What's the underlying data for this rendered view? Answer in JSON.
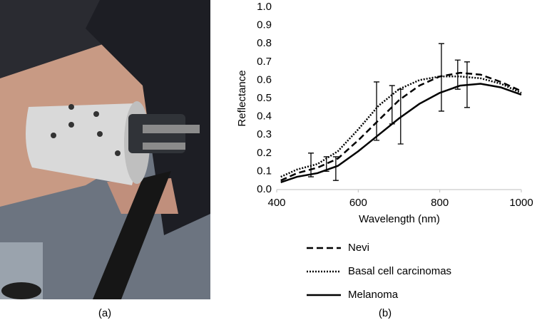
{
  "panel_labels": [
    "(a)",
    "(b)"
  ],
  "chart_data": {
    "type": "line",
    "x_label": "Wavelength (nm)",
    "y_label": "Reflectance",
    "x": [
      410,
      450,
      500,
      550,
      600,
      650,
      700,
      750,
      800,
      850,
      900,
      950,
      1000
    ],
    "series": [
      {
        "name": "Nevi",
        "color": "#000000",
        "dash": "dashed",
        "values": [
          0.05,
          0.09,
          0.12,
          0.17,
          0.27,
          0.38,
          0.49,
          0.57,
          0.62,
          0.64,
          0.63,
          0.59,
          0.54
        ]
      },
      {
        "name": "Basal cell carcinomas",
        "color": "#000000",
        "dash": "dotted",
        "values": [
          0.07,
          0.11,
          0.14,
          0.21,
          0.33,
          0.46,
          0.55,
          0.6,
          0.62,
          0.62,
          0.61,
          0.58,
          0.53
        ]
      },
      {
        "name": "Melanoma",
        "color": "#000000",
        "dash": "solid",
        "values": [
          0.04,
          0.07,
          0.09,
          0.13,
          0.21,
          0.3,
          0.39,
          0.47,
          0.53,
          0.57,
          0.58,
          0.56,
          0.52
        ]
      }
    ],
    "error_bars": [
      {
        "x": 484,
        "low": 0.07,
        "high": 0.2
      },
      {
        "x": 522,
        "low": 0.1,
        "high": 0.18
      },
      {
        "x": 545,
        "low": 0.05,
        "high": 0.18
      },
      {
        "x": 645,
        "low": 0.27,
        "high": 0.59
      },
      {
        "x": 683,
        "low": 0.36,
        "high": 0.57
      },
      {
        "x": 704,
        "low": 0.25,
        "high": 0.55
      },
      {
        "x": 804,
        "low": 0.43,
        "high": 0.8
      },
      {
        "x": 844,
        "low": 0.55,
        "high": 0.71
      },
      {
        "x": 867,
        "low": 0.45,
        "high": 0.7
      }
    ],
    "xlim": [
      400,
      1000
    ],
    "xticks": [
      400,
      600,
      800,
      1000
    ],
    "ylim": [
      0,
      1
    ],
    "yticks": [
      {
        "value": 0,
        "label": "0.0"
      },
      0.1,
      0.2,
      0.3,
      0.4,
      0.5,
      0.6,
      0.7,
      0.8,
      0.9,
      {
        "value": 1,
        "label": "1.0"
      }
    ],
    "grid": false,
    "legend": "bottom"
  }
}
